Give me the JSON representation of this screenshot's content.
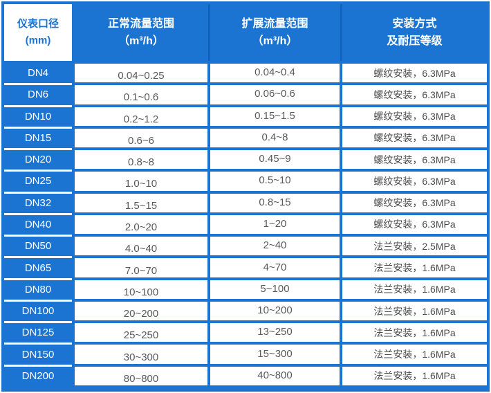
{
  "colors": {
    "primary_blue": "#1b74d2",
    "header_divider_blue": "#1263c0",
    "number_text": "#58595b",
    "install_text": "#4a4a4a"
  },
  "table": {
    "headers": [
      {
        "line1": "仪表口径",
        "line2": "(mm)"
      },
      {
        "line1": "正常流量范围",
        "line2": "（m³/h）"
      },
      {
        "line1": "扩展流量范围",
        "line2": "（m³/h）"
      },
      {
        "line1": "安装方式",
        "line2": "及耐压等级"
      }
    ],
    "rows": [
      {
        "diameter": "DN4",
        "normal_range": "0.04~0.25",
        "extended_range": "0.04~0.4",
        "installation": "螺纹安装，6.3MPa"
      },
      {
        "diameter": "DN6",
        "normal_range": "0.1~0.6",
        "extended_range": "0.06~0.6",
        "installation": "螺纹安装，6.3MPa"
      },
      {
        "diameter": "DN10",
        "normal_range": "0.2~1.2",
        "extended_range": "0.15~1.5",
        "installation": "螺纹安装，6.3MPa"
      },
      {
        "diameter": "DN15",
        "normal_range": "0.6~6",
        "extended_range": "0.4~8",
        "installation": "螺纹安装，6.3MPa"
      },
      {
        "diameter": "DN20",
        "normal_range": "0.8~8",
        "extended_range": "0.45~9",
        "installation": "螺纹安装，6.3MPa"
      },
      {
        "diameter": "DN25",
        "normal_range": "1.0~10",
        "extended_range": "0.5~10",
        "installation": "螺纹安装，6.3MPa"
      },
      {
        "diameter": "DN32",
        "normal_range": "1.5~15",
        "extended_range": "0.8~15",
        "installation": "螺纹安装，6.3MPa"
      },
      {
        "diameter": "DN40",
        "normal_range": "2.0~20",
        "extended_range": "1~20",
        "installation": "螺纹安装，6.3MPa"
      },
      {
        "diameter": "DN50",
        "normal_range": "4.0~40",
        "extended_range": "2~40",
        "installation": "法兰安装，2.5MPa"
      },
      {
        "diameter": "DN65",
        "normal_range": "7.0~70",
        "extended_range": "4~70",
        "installation": "法兰安装，1.6MPa"
      },
      {
        "diameter": "DN80",
        "normal_range": "10~100",
        "extended_range": "5~100",
        "installation": "法兰安装，1.6MPa"
      },
      {
        "diameter": "DN100",
        "normal_range": "20~200",
        "extended_range": "10~200",
        "installation": "法兰安装，1.6MPa"
      },
      {
        "diameter": "DN125",
        "normal_range": "25~250",
        "extended_range": "13~250",
        "installation": "法兰安装，1.6MPa"
      },
      {
        "diameter": "DN150",
        "normal_range": "30~300",
        "extended_range": "15~300",
        "installation": "法兰安装，1.6MPa"
      },
      {
        "diameter": "DN200",
        "normal_range": "80~800",
        "extended_range": "40~800",
        "installation": "法兰安装，1.6MPa"
      }
    ]
  }
}
